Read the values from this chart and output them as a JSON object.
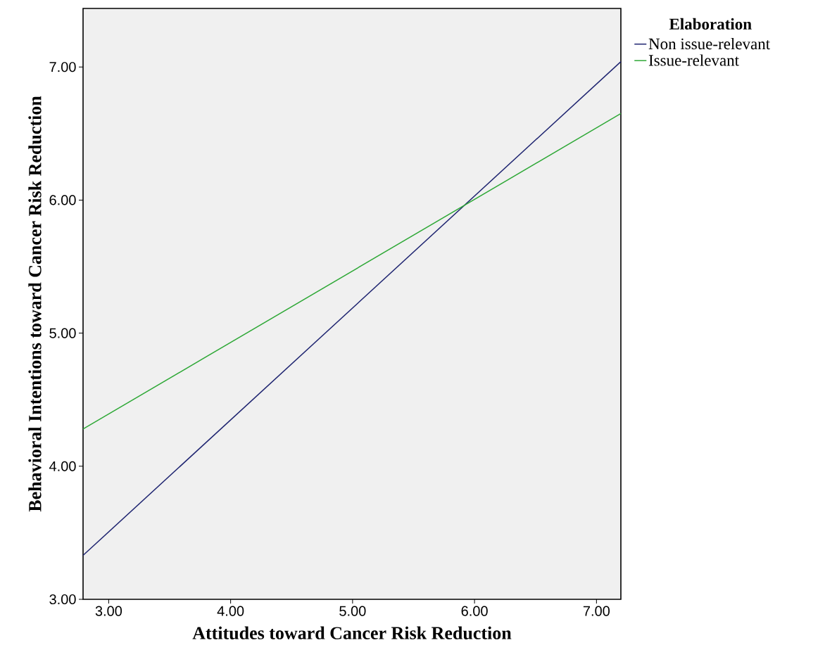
{
  "chart_data": {
    "type": "line",
    "xlabel": "Attitudes toward Cancer Risk Reduction",
    "ylabel": "Behavioral Intentions toward Cancer Risk Reduction",
    "legend_title": "Elaboration",
    "legend": "top right",
    "grid": false,
    "marker": "none",
    "line_style": "solid",
    "x": [
      2.79,
      7.2
    ],
    "xlim": [
      2.79,
      7.2
    ],
    "ylim": [
      3,
      7.44
    ],
    "xticks": [
      {
        "value": 3,
        "label": "3.00"
      },
      {
        "value": 4,
        "label": "4.00"
      },
      {
        "value": 5,
        "label": "5.00"
      },
      {
        "value": 6,
        "label": "6.00"
      },
      {
        "value": 7,
        "label": "7.00"
      }
    ],
    "yticks": [
      {
        "value": 3,
        "label": "3.00"
      },
      {
        "value": 4,
        "label": "4.00"
      },
      {
        "value": 5,
        "label": "5.00"
      },
      {
        "value": 6,
        "label": "6.00"
      },
      {
        "value": 7,
        "label": "7.00"
      }
    ],
    "series": [
      {
        "name": "Non issue-relevant",
        "color": "#1e2470",
        "values": [
          3.33,
          7.04
        ]
      },
      {
        "name": "Issue-relevant",
        "color": "#2ea836",
        "values": [
          4.28,
          6.65
        ]
      }
    ]
  }
}
